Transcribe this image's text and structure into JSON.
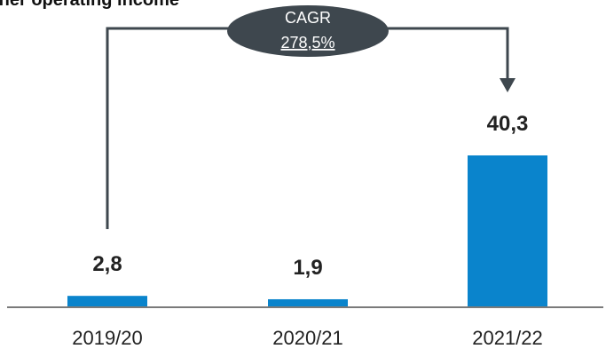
{
  "title": "ther operating income",
  "chart_data": {
    "type": "bar",
    "title": "ther operating income",
    "categories": [
      "2019/20",
      "2020/21",
      "2021/22"
    ],
    "values": [
      2.8,
      1.9,
      40.3
    ],
    "value_labels": [
      "2,8",
      "1,9",
      "40,3"
    ],
    "bar_color": "#0A84CC",
    "annotation": {
      "type": "cagr-arrow",
      "from": "2019/20",
      "to": "2021/22",
      "label_line1": "CAGR",
      "label_line2": "278,5%",
      "color": "#3E474E"
    },
    "grid": false,
    "legend": "none"
  }
}
